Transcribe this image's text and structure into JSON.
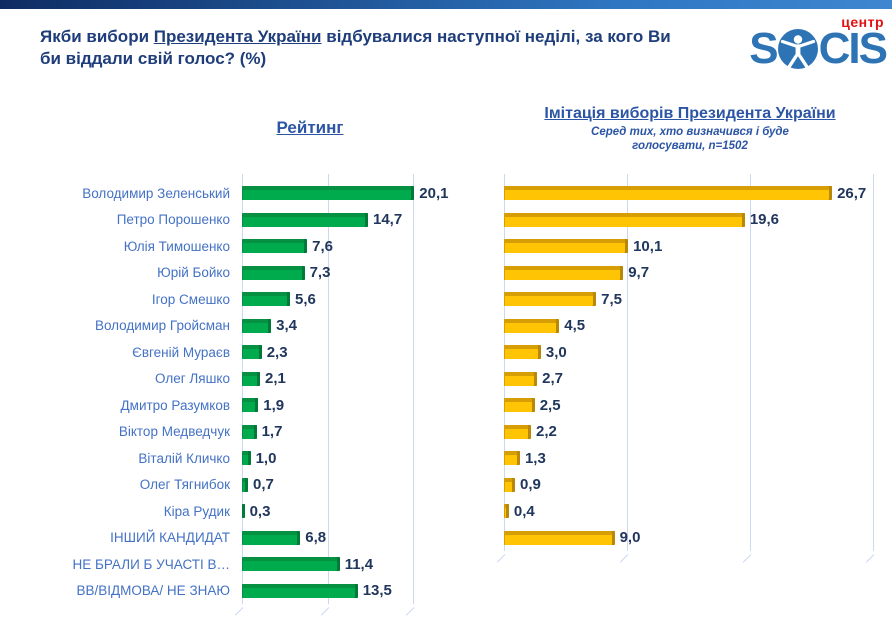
{
  "header": {
    "title_prefix": "Якби вибори ",
    "title_underlined": "Президента України",
    "title_suffix": " відбувалися наступної неділі, за кого Ви би віддали свій голос? (%)"
  },
  "logo": {
    "center_label": "центр",
    "text_s": "S",
    "text_cis": "CIS",
    "blue": "#2e74b5",
    "red": "#e01212"
  },
  "chart_data": [
    {
      "type": "bar",
      "orientation": "horizontal",
      "title": "Рейтинг",
      "categories": [
        "Володимир Зеленський",
        "Петро Порошенко",
        "Юлія Тимошенко",
        "Юрій Бойко",
        "Ігор Смешко",
        "Володимир Гройсман",
        "Євгеній Мураєв",
        "Олег Ляшко",
        "Дмитро Разумков",
        "Віктор Медведчук",
        "Віталій Кличко",
        "Олег Тягнибок",
        "Кіра Рудик",
        "ІНШИЙ КАНДИДАТ",
        "НЕ БРАЛИ Б УЧАСТІ В…",
        "ВВ/ВІДМОВА/ НЕ ЗНАЮ"
      ],
      "values": [
        20.1,
        14.7,
        7.6,
        7.3,
        5.6,
        3.4,
        2.3,
        2.1,
        1.9,
        1.7,
        1.0,
        0.7,
        0.3,
        6.8,
        11.4,
        13.5
      ],
      "xlim": [
        0,
        25.2
      ],
      "gridline_step": 10,
      "grid": true,
      "value_decimal_separator": ",",
      "bar_color": "#00ab4e",
      "bar_color_dark": "#069042",
      "bar_color_cap": "#007a38"
    },
    {
      "type": "bar",
      "orientation": "horizontal",
      "title": "Імітація виборів Президента України",
      "subtitle": "Серед тих, хто визначився і буде голосувати, n=1502",
      "categories": [
        "Володимир Зеленський",
        "Петро Порошенко",
        "Юлія Тимошенко",
        "Юрій Бойко",
        "Ігор Смешко",
        "Володимир Гройсман",
        "Євгеній Мураєв",
        "Олег Ляшко",
        "Дмитро Разумков",
        "Віктор Медведчук",
        "Віталій Кличко",
        "Олег Тягнибок",
        "Кіра Рудик",
        "ІНШИЙ КАНДИДАТ",
        "НЕ БРАЛИ Б УЧАСТІ В…",
        "ВВ/ВІДМОВА/ НЕ ЗНАЮ"
      ],
      "values": [
        26.7,
        19.6,
        10.1,
        9.7,
        7.5,
        4.5,
        3.0,
        2.7,
        2.5,
        2.2,
        1.3,
        0.9,
        0.4,
        9.0,
        null,
        null
      ],
      "xlim": [
        0,
        30.6
      ],
      "gridline_step": 10,
      "grid": true,
      "value_decimal_separator": ",",
      "bar_color": "#ffc403",
      "bar_color_dark": "#d79d05",
      "bar_color_cap": "#b98804"
    }
  ]
}
